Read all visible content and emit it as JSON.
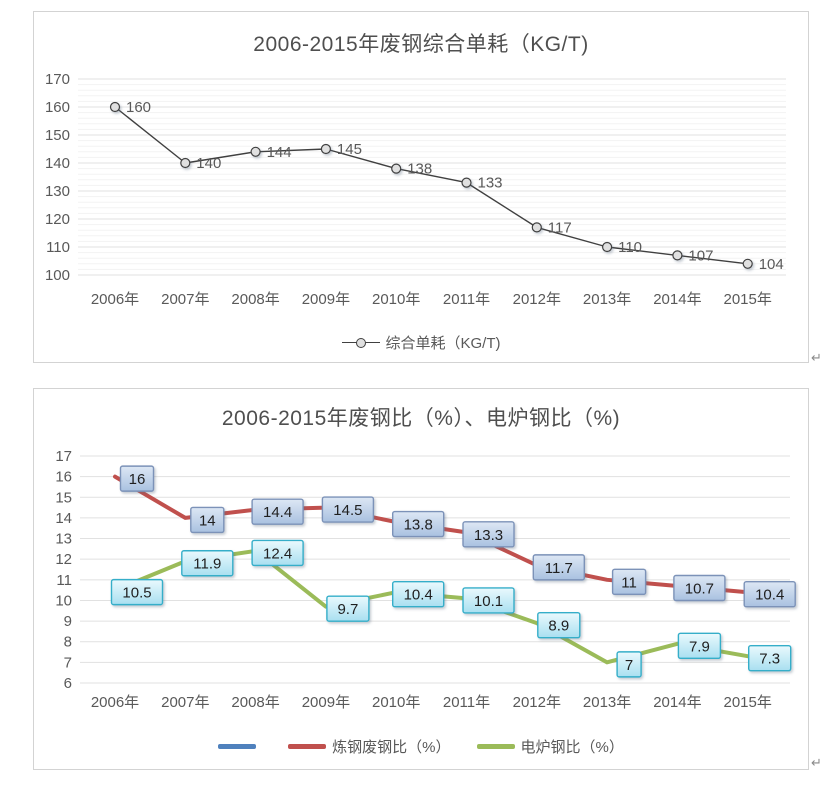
{
  "paragraph_mark": "↵",
  "chart_data": [
    {
      "type": "line",
      "title": "2006-2015年废钢综合单耗（KG/T)",
      "categories": [
        "2006年",
        "2007年",
        "2008年",
        "2009年",
        "2010年",
        "2011年",
        "2012年",
        "2013年",
        "2014年",
        "2015年"
      ],
      "y_axis": {
        "min": 100,
        "max": 170,
        "step": 10,
        "minor_step": 2,
        "ticks": [
          170,
          160,
          150,
          140,
          130,
          120,
          110,
          100
        ]
      },
      "grid": "major-and-minor",
      "legend_position": "bottom",
      "series": [
        {
          "name": "综合单耗（KG/T)",
          "color": "#404040",
          "marker": "circle",
          "marker_fill": "#e0e0e0",
          "values": [
            160,
            140,
            144,
            145,
            138,
            133,
            117,
            110,
            107,
            104
          ]
        }
      ]
    },
    {
      "type": "line",
      "title": "2006-2015年废钢比（%）、电炉钢比（%)",
      "categories": [
        "2006年",
        "2007年",
        "2008年",
        "2009年",
        "2010年",
        "2011年",
        "2012年",
        "2013年",
        "2014年",
        "2015年"
      ],
      "y_axis": {
        "min": 6,
        "max": 17,
        "step": 1,
        "ticks": [
          17,
          16,
          15,
          14,
          13,
          12,
          11,
          10,
          9,
          8,
          7,
          6
        ]
      },
      "grid": "major",
      "legend_position": "bottom",
      "series": [
        {
          "name": "",
          "color": "#4F81BD",
          "values": []
        },
        {
          "name": "炼钢废钢比（%）",
          "color": "#C0504D",
          "values": [
            16,
            14,
            14.4,
            14.5,
            13.8,
            13.3,
            11.7,
            11,
            10.7,
            10.4
          ],
          "label_box": {
            "fill_top": "#dde7f4",
            "fill_bottom": "#a9c1e0",
            "border": "#7b92b8",
            "text": "#1f1f1f"
          }
        },
        {
          "name": "电炉钢比（%）",
          "color": "#9BBB59",
          "values": [
            10.5,
            11.9,
            12.4,
            9.7,
            10.4,
            10.1,
            8.9,
            7,
            7.9,
            7.3
          ],
          "label_box": {
            "fill_top": "#eaf9fd",
            "fill_bottom": "#a9dff0",
            "border": "#35aec9",
            "text": "#1f1f1f"
          }
        }
      ]
    }
  ]
}
